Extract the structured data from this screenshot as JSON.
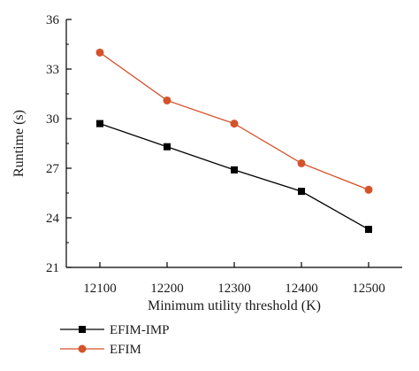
{
  "chart_data": {
    "type": "line",
    "title": "",
    "xlabel": "Minimum utility threshold (K)",
    "ylabel": "Runtime (s)",
    "x": [
      12100,
      12200,
      12300,
      12400,
      12500
    ],
    "x_tick_labels": [
      "12100",
      "12200",
      "12300",
      "12400",
      "12500"
    ],
    "ylim": [
      21,
      36
    ],
    "y_ticks": [
      21,
      24,
      27,
      30,
      33,
      36
    ],
    "y_tick_labels": [
      "21",
      "24",
      "27",
      "30",
      "33",
      "36"
    ],
    "grid": false,
    "legend_position": "bottom-left",
    "series": [
      {
        "name": "EFIM-IMP",
        "marker": "square",
        "color": "#000000",
        "values": [
          29.7,
          28.3,
          26.9,
          25.6,
          23.3
        ]
      },
      {
        "name": "EFIM",
        "marker": "circle",
        "color": "#d4532a",
        "values": [
          34.0,
          31.1,
          29.7,
          27.3,
          25.7
        ]
      }
    ]
  }
}
